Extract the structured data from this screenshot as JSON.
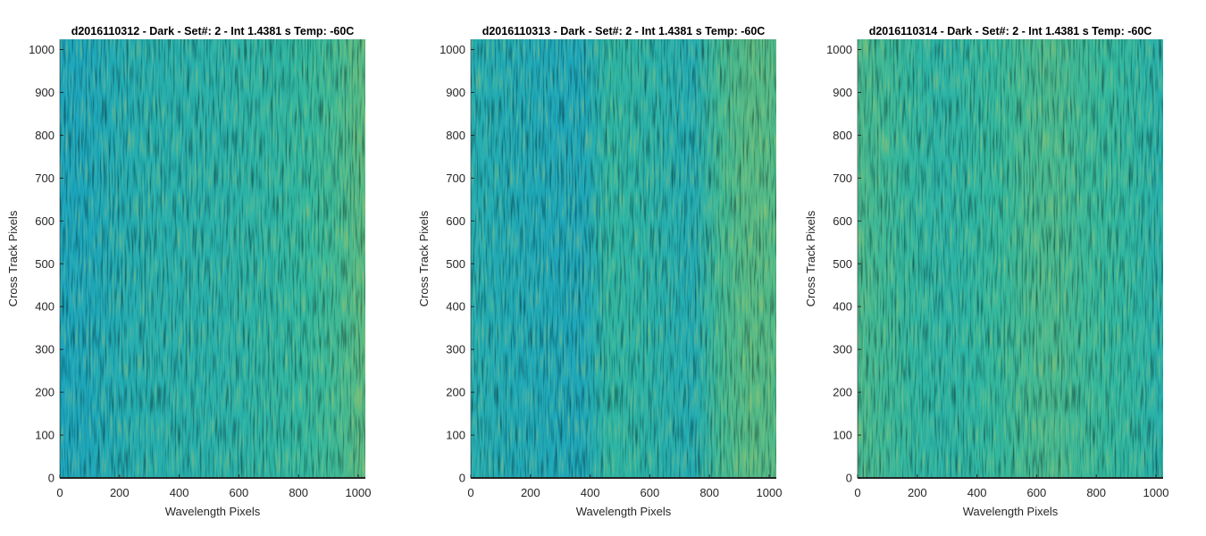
{
  "chart_data": [
    {
      "type": "heatmap",
      "title": "d2016110312 - Dark - Set#: 2 - Int 1.4381 s Temp: -60C",
      "xlabel": "Wavelength Pixels",
      "ylabel": "Cross Track Pixels",
      "xlim": [
        0,
        1024
      ],
      "ylim": [
        0,
        1024
      ],
      "xticks": [
        "0",
        "200",
        "400",
        "600",
        "800",
        "1000"
      ],
      "yticks": [
        "0",
        "100",
        "200",
        "300",
        "400",
        "500",
        "600",
        "700",
        "800",
        "900",
        "1000"
      ],
      "colormap": "parula",
      "column_intensity": [
        0.36,
        0.38,
        0.42,
        0.45,
        0.46,
        0.47,
        0.48,
        0.5,
        0.52,
        0.55,
        0.58,
        0.64
      ],
      "grid": false
    },
    {
      "type": "heatmap",
      "title": "d2016110313 - Dark - Set#: 2 - Int 1.4381 s Temp: -60C",
      "xlabel": "Wavelength Pixels",
      "ylabel": "Cross Track Pixels",
      "xlim": [
        0,
        1024
      ],
      "ylim": [
        0,
        1024
      ],
      "xticks": [
        "0",
        "200",
        "400",
        "600",
        "800",
        "1000"
      ],
      "yticks": [
        "0",
        "100",
        "200",
        "300",
        "400",
        "500",
        "600",
        "700",
        "800",
        "900",
        "1000"
      ],
      "colormap": "parula",
      "column_intensity": [
        0.44,
        0.42,
        0.4,
        0.39,
        0.38,
        0.52,
        0.5,
        0.46,
        0.42,
        0.58,
        0.63,
        0.62
      ],
      "grid": false
    },
    {
      "type": "heatmap",
      "title": "d2016110314 - Dark - Set#: 2 - Int 1.4381 s Temp: -60C",
      "xlabel": "Wavelength Pixels",
      "ylabel": "Cross Track Pixels",
      "xlim": [
        0,
        1024
      ],
      "ylim": [
        0,
        1024
      ],
      "xticks": [
        "0",
        "200",
        "400",
        "600",
        "800",
        "1000"
      ],
      "yticks": [
        "0",
        "100",
        "200",
        "300",
        "400",
        "500",
        "600",
        "700",
        "800",
        "900",
        "1000"
      ],
      "colormap": "parula",
      "column_intensity": [
        0.6,
        0.57,
        0.53,
        0.5,
        0.52,
        0.55,
        0.58,
        0.6,
        0.57,
        0.55,
        0.52,
        0.47
      ],
      "grid": false
    }
  ],
  "colors": {
    "tick_text": "#262626",
    "axis_line": "#262626",
    "title_text": "#000000"
  }
}
